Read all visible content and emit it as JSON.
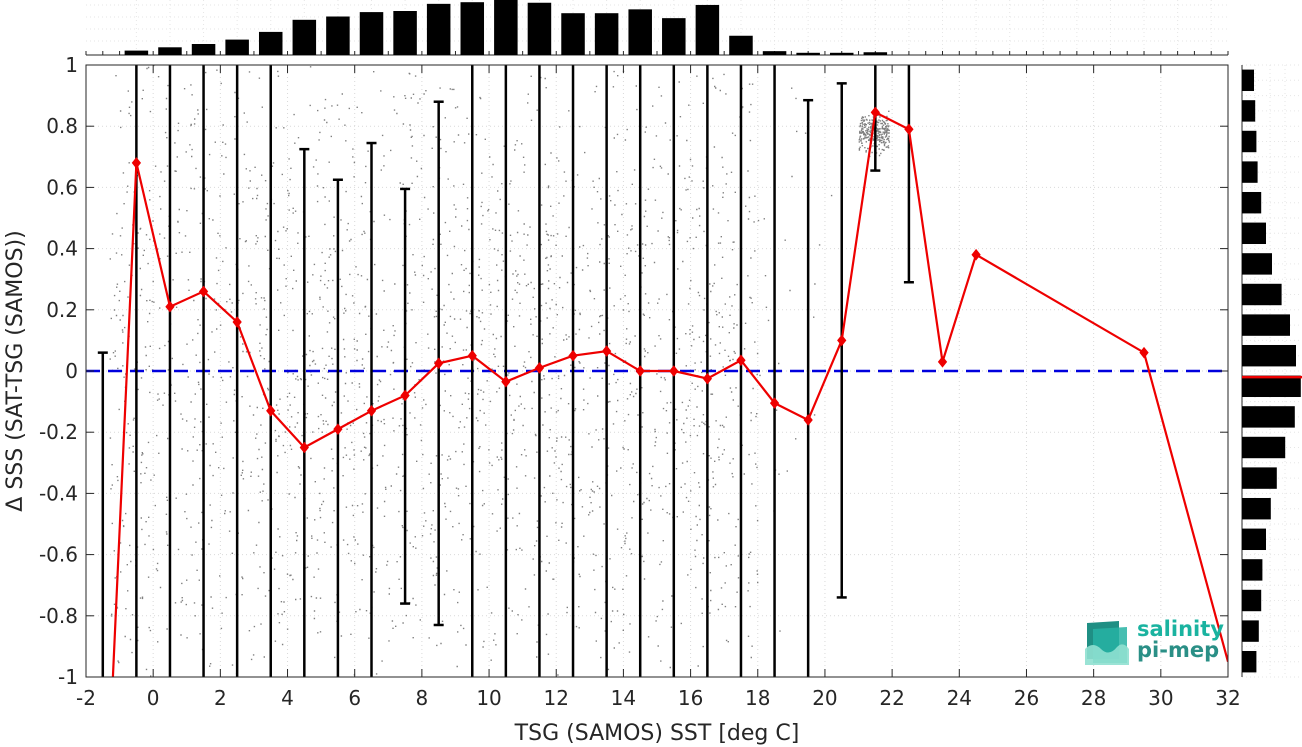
{
  "chart_data": {
    "type": "scatter",
    "xlabel": "TSG (SAMOS) SST [deg C]",
    "ylabel": "Δ SSS (SAT-TSG (SAMOS))",
    "xlim": [
      -2,
      32
    ],
    "ylim": [
      -1,
      1
    ],
    "xticks": [
      -2,
      0,
      2,
      4,
      6,
      8,
      10,
      12,
      14,
      16,
      18,
      20,
      22,
      24,
      26,
      28,
      30,
      32
    ],
    "yticks": [
      -1,
      -0.8,
      -0.6,
      -0.4,
      -0.2,
      0,
      0.2,
      0.4,
      0.6,
      0.8,
      1
    ],
    "grid": true,
    "zero_line": {
      "y": 0,
      "color": "#0000dd",
      "style": "dashed"
    },
    "scatter_color": "#808080",
    "mean_series": {
      "color": "#ee0000",
      "x": [
        -1.2,
        -0.5,
        0.5,
        1.5,
        2.5,
        3.5,
        4.5,
        5.5,
        6.5,
        7.5,
        8.5,
        9.5,
        10.5,
        11.5,
        12.5,
        13.5,
        14.5,
        15.5,
        16.5,
        17.5,
        18.5,
        19.5,
        20.5,
        21.5,
        22.5,
        23.5,
        24.5,
        29.5,
        32
      ],
      "y": [
        -1.0,
        0.68,
        0.21,
        0.26,
        0.16,
        -0.13,
        -0.25,
        -0.19,
        -0.13,
        -0.08,
        0.025,
        0.05,
        -0.035,
        0.01,
        0.05,
        0.065,
        0.0,
        0.0,
        -0.025,
        0.035,
        -0.105,
        -0.16,
        0.1,
        0.845,
        0.79,
        0.03,
        0.38,
        0.06,
        -0.95
      ]
    },
    "error_bars": [
      {
        "x": -1.5,
        "low": -1.0,
        "high": 0.06
      },
      {
        "x": -0.5,
        "low": -1.0,
        "high": 1.0
      },
      {
        "x": 0.5,
        "low": -1.0,
        "high": 1.0
      },
      {
        "x": 1.5,
        "low": -1.0,
        "high": 1.0
      },
      {
        "x": 2.5,
        "low": -1.0,
        "high": 1.0
      },
      {
        "x": 3.5,
        "low": -1.0,
        "high": 1.0
      },
      {
        "x": 4.5,
        "low": -1.0,
        "high": 0.725
      },
      {
        "x": 5.5,
        "low": -1.0,
        "high": 0.625
      },
      {
        "x": 6.5,
        "low": -1.0,
        "high": 0.745
      },
      {
        "x": 7.5,
        "low": -0.76,
        "high": 0.595
      },
      {
        "x": 8.5,
        "low": -0.83,
        "high": 0.88
      },
      {
        "x": 9.5,
        "low": -1.0,
        "high": 1.0
      },
      {
        "x": 10.5,
        "low": -1.0,
        "high": 1.0
      },
      {
        "x": 11.5,
        "low": -1.0,
        "high": 1.0
      },
      {
        "x": 12.5,
        "low": -1.0,
        "high": 1.0
      },
      {
        "x": 13.5,
        "low": -1.0,
        "high": 1.0
      },
      {
        "x": 14.5,
        "low": -1.0,
        "high": 1.0
      },
      {
        "x": 15.5,
        "low": -1.0,
        "high": 1.0
      },
      {
        "x": 16.5,
        "low": -1.0,
        "high": 1.0
      },
      {
        "x": 17.5,
        "low": -1.0,
        "high": 1.0
      },
      {
        "x": 18.5,
        "low": -1.0,
        "high": 1.0
      },
      {
        "x": 19.5,
        "low": -1.0,
        "high": 0.885
      },
      {
        "x": 20.5,
        "low": -0.74,
        "high": 0.94
      },
      {
        "x": 21.5,
        "low": 0.655,
        "high": 1.0
      },
      {
        "x": 22.5,
        "low": 0.29,
        "high": 1.0
      }
    ],
    "top_histogram": {
      "bins": [
        -0.5,
        0.5,
        1.5,
        2.5,
        3.5,
        4.5,
        5.5,
        6.5,
        7.5,
        8.5,
        9.5,
        10.5,
        11.5,
        12.5,
        13.5,
        14.5,
        15.5,
        16.5,
        17.5,
        18.5,
        19.5,
        20.5,
        21.5
      ],
      "counts": [
        0.08,
        0.14,
        0.2,
        0.28,
        0.42,
        0.64,
        0.7,
        0.78,
        0.8,
        0.93,
        0.96,
        1.0,
        0.95,
        0.76,
        0.76,
        0.83,
        0.67,
        0.91,
        0.35,
        0.07,
        0.04,
        0.04,
        0.05
      ]
    },
    "right_histogram": {
      "bins": [
        0.95,
        0.85,
        0.75,
        0.65,
        0.55,
        0.45,
        0.35,
        0.25,
        0.15,
        0.05,
        -0.05,
        -0.15,
        -0.25,
        -0.35,
        -0.45,
        -0.55,
        -0.65,
        -0.75,
        -0.85,
        -0.95
      ],
      "counts": [
        0.2,
        0.22,
        0.24,
        0.26,
        0.32,
        0.4,
        0.5,
        0.66,
        0.8,
        0.9,
        0.98,
        0.88,
        0.72,
        0.58,
        0.48,
        0.4,
        0.34,
        0.32,
        0.28,
        0.24
      ],
      "median_line": -0.02
    }
  },
  "logo": {
    "line1": "salinity",
    "line2": "pi-mep"
  }
}
